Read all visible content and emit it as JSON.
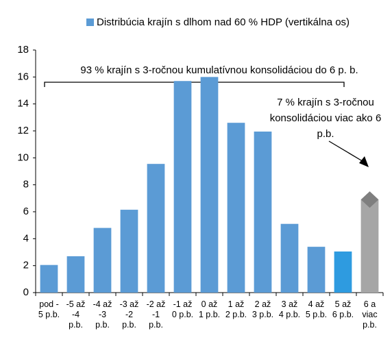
{
  "chart_data": {
    "type": "bar",
    "legend": "Distribúcia krajín s dlhom nad 60 % HDP (vertikálna os)",
    "annotations": [
      "93 % krajín s 3-ročnou kumulatívnou konsolidáciou do 6 p. b.",
      "7 % krajín s 3-ročnou\nkonsolidáciou viac ako 6\np.b."
    ],
    "categories": [
      "pod -\n5 p.b.",
      "-5 až\n-4\np.b.",
      "-4 až\n-3\np.b.",
      "-3 až\n-2\np.b.",
      "-2 až\n-1\np.b.",
      "-1 až\n0 p.b.",
      "0 až\n1 p.b.",
      "1 až\n2 p.b.",
      "2 až\n3 p.b.",
      "3 až\n4 p.b.",
      "4 až\n5 p.b.",
      "5 až\n6 p.b.",
      "6 a\nviac\np.b."
    ],
    "values": [
      2.05,
      2.7,
      4.8,
      6.15,
      9.55,
      15.7,
      16.0,
      12.6,
      11.95,
      5.1,
      3.4,
      3.05,
      6.9
    ],
    "colors": [
      "#5b9bd5",
      "#5b9bd5",
      "#5b9bd5",
      "#5b9bd5",
      "#5b9bd5",
      "#5b9bd5",
      "#5b9bd5",
      "#5b9bd5",
      "#5b9bd5",
      "#5b9bd5",
      "#5b9bd5",
      "#2e9be0",
      "#a6a6a6"
    ],
    "ylim": [
      0,
      18
    ],
    "yticks": [
      0,
      2,
      4,
      6,
      8,
      10,
      12,
      14,
      16,
      18
    ]
  }
}
